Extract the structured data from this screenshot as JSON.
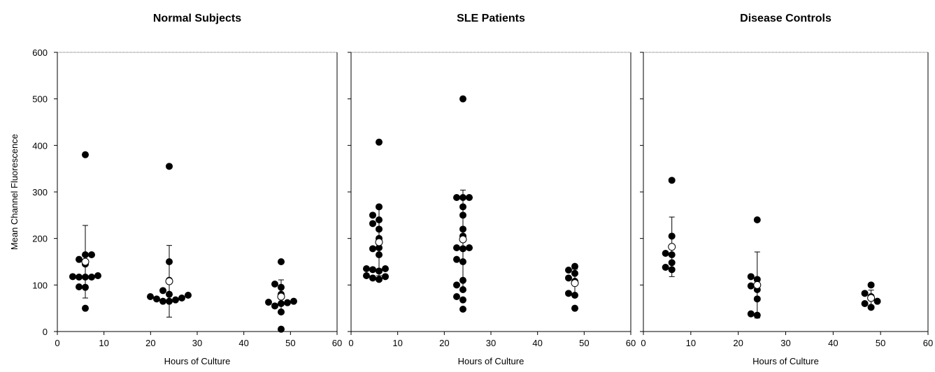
{
  "figure": {
    "ylabel": "Mean Channel Fluorescence"
  },
  "chart_data": [
    {
      "type": "scatter",
      "title": "Normal Subjects",
      "xlabel": "Hours of Culture",
      "ylabel": "Mean Channel Fluorescence",
      "xlim": [
        0,
        60
      ],
      "ylim": [
        0,
        600
      ],
      "xticks": [
        0,
        10,
        20,
        30,
        40,
        50,
        60
      ],
      "yticks": [
        0,
        100,
        200,
        300,
        400,
        500,
        600
      ],
      "grid": false,
      "groups": [
        {
          "x": 6,
          "values": [
            380,
            165,
            165,
            155,
            145,
            120,
            118,
            117,
            117,
            117,
            96,
            95,
            50
          ],
          "mean": 150,
          "sd": 78
        },
        {
          "x": 24,
          "values": [
            355,
            150,
            110,
            88,
            80,
            78,
            75,
            72,
            70,
            68,
            65,
            65
          ],
          "mean": 108,
          "sd": 77
        },
        {
          "x": 48,
          "values": [
            150,
            102,
            95,
            80,
            65,
            63,
            62,
            60,
            55,
            42,
            5
          ],
          "mean": 75,
          "sd": 36
        }
      ]
    },
    {
      "type": "scatter",
      "title": "SLE Patients",
      "xlabel": "Hours of Culture",
      "ylabel": "",
      "xlim": [
        0,
        60
      ],
      "ylim": [
        0,
        600
      ],
      "xticks": [
        0,
        10,
        20,
        30,
        40,
        50,
        60
      ],
      "yticks": [
        0,
        100,
        200,
        300,
        400,
        500,
        600
      ],
      "grid": false,
      "groups": [
        {
          "x": 6,
          "values": [
            407,
            268,
            250,
            240,
            232,
            220,
            200,
            180,
            178,
            165,
            135,
            135,
            133,
            130,
            120,
            118,
            115,
            112
          ],
          "mean": 192,
          "sd": 72
        },
        {
          "x": 24,
          "values": [
            500,
            288,
            288,
            288,
            268,
            250,
            220,
            205,
            180,
            180,
            178,
            155,
            150,
            110,
            100,
            90,
            75,
            68,
            48
          ],
          "mean": 198,
          "sd": 106
        },
        {
          "x": 48,
          "values": [
            140,
            132,
            125,
            115,
            108,
            82,
            78,
            50
          ],
          "mean": 104,
          "sd": 30
        }
      ]
    },
    {
      "type": "scatter",
      "title": "Disease Controls",
      "xlabel": "Hours of Culture",
      "ylabel": "",
      "xlim": [
        0,
        60
      ],
      "ylim": [
        0,
        600
      ],
      "xticks": [
        0,
        10,
        20,
        30,
        40,
        50,
        60
      ],
      "yticks": [
        0,
        100,
        200,
        300,
        400,
        500,
        600
      ],
      "grid": false,
      "groups": [
        {
          "x": 6,
          "values": [
            325,
            205,
            168,
            165,
            148,
            138,
            133
          ],
          "mean": 182,
          "sd": 64
        },
        {
          "x": 24,
          "values": [
            240,
            118,
            112,
            98,
            90,
            70,
            38,
            35
          ],
          "mean": 100,
          "sd": 71
        },
        {
          "x": 48,
          "values": [
            100,
            82,
            75,
            65,
            60,
            52
          ],
          "mean": 72,
          "sd": 17
        }
      ]
    }
  ]
}
